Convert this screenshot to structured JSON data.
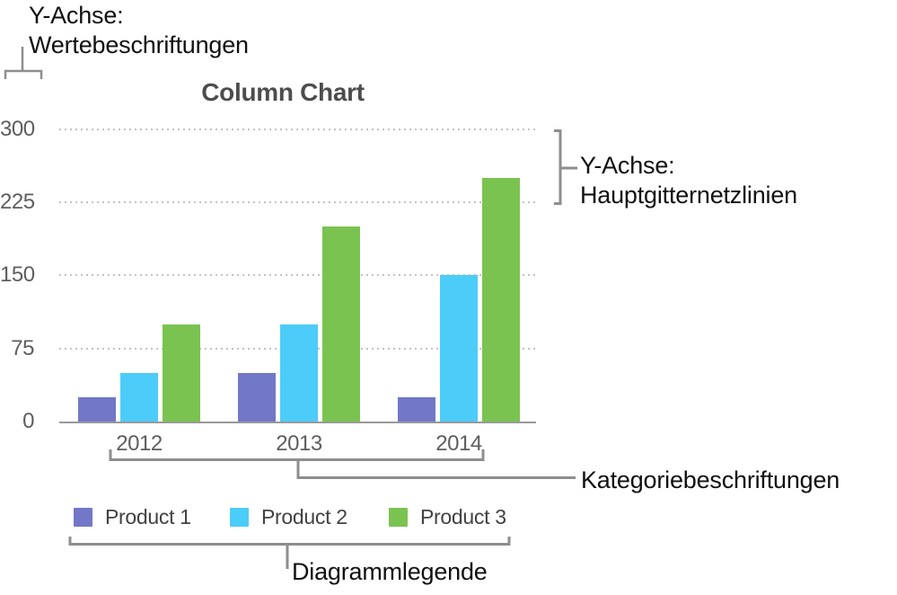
{
  "annotations": {
    "y_axis_value_labels": {
      "line1": "Y-Achse:",
      "line2": "Wertebeschriftungen"
    },
    "y_axis_gridlines": {
      "line1": "Y-Achse:",
      "line2": "Hauptgitternetzlinien"
    },
    "category_labels": "Kategoriebeschriftungen",
    "chart_legend": "Diagrammlegende"
  },
  "chart_data": {
    "type": "bar",
    "title": "Column Chart",
    "categories": [
      "2012",
      "2013",
      "2014"
    ],
    "series": [
      {
        "name": "Product 1",
        "color": "#7277c8",
        "values": [
          25,
          50,
          25
        ]
      },
      {
        "name": "Product 2",
        "color": "#4cccf8",
        "values": [
          50,
          100,
          150
        ]
      },
      {
        "name": "Product 3",
        "color": "#7ac351",
        "values": [
          100,
          200,
          250
        ]
      }
    ],
    "xlabel": "",
    "ylabel": "",
    "ylim": [
      0,
      300
    ],
    "yticks": [
      0,
      75,
      150,
      225,
      300
    ],
    "grid": "horizontal dotted major gridlines",
    "legend_position": "bottom"
  },
  "colors": {
    "gridline": "#c2c2c2",
    "axis_line": "#999999",
    "bracket": "#8e8e8e",
    "title_text": "#4d4d4d",
    "axis_text": "#5e5e5e",
    "legend_text": "#424242",
    "annotation_text": "#111111"
  }
}
